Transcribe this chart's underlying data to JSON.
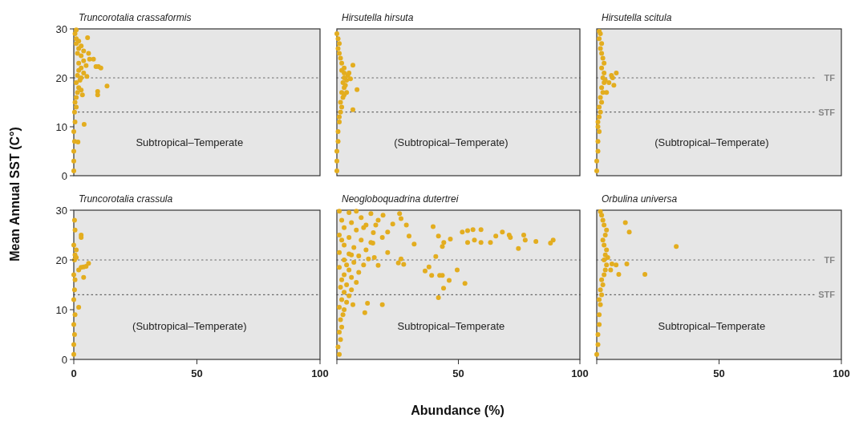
{
  "chart_data": [
    {
      "type": "scatter",
      "title": "Truncorotalia crassaformis",
      "ylabel": "Mean Annual SST (C°)",
      "annotations": [
        "Subtropical–Temperate"
      ],
      "color": "#e3ad1f",
      "marker": "circle",
      "xlim": [
        0,
        100
      ],
      "ylim": [
        0,
        30
      ],
      "yticks": [
        0,
        10,
        20,
        30
      ],
      "tick_labels": "y",
      "x": [
        0,
        0,
        0,
        0.3,
        0,
        0.5,
        0.3,
        1,
        0.5,
        1,
        1.5,
        2,
        1,
        2.5,
        3,
        1.5,
        4,
        2,
        3,
        5,
        2,
        4,
        6,
        3,
        1.5,
        4,
        2,
        3,
        1,
        2,
        1,
        0.5,
        1,
        5.6,
        6.4,
        8,
        9,
        10,
        11,
        13.5,
        9.7,
        9.7,
        4.2,
        1.7,
        5.3,
        3,
        3.5
      ],
      "values": [
        1,
        3,
        5,
        7,
        9,
        11,
        13,
        14,
        15,
        16,
        17,
        18,
        19,
        19.5,
        20,
        20.5,
        21,
        21.5,
        22,
        22.5,
        23,
        23.5,
        25,
        24.5,
        25,
        25.5,
        26,
        26.5,
        27,
        27.5,
        28,
        29,
        29.8,
        28.2,
        23.8,
        23.8,
        22.3,
        22.3,
        22,
        18.3,
        17.2,
        16.5,
        10.5,
        6.9,
        20.3,
        17.5,
        16.5
      ],
      "ref_lines": [
        {
          "axis": "y",
          "value": 20,
          "color": "#666666",
          "line_style": "dotted"
        },
        {
          "axis": "y",
          "value": 13,
          "color": "#666666",
          "line_style": "dotted"
        }
      ]
    },
    {
      "type": "scatter",
      "title": "Hirsutella hirsuta",
      "annotations": [
        "(Subtropical–Temperate)"
      ],
      "color": "#e3ad1f",
      "marker": "circle",
      "xlim": [
        0,
        100
      ],
      "ylim": [
        0,
        30
      ],
      "tick_labels": false,
      "x": [
        0,
        0,
        0,
        0.5,
        0.5,
        1,
        1,
        1.5,
        2,
        1.5,
        2.5,
        2,
        3,
        3.5,
        2.5,
        4,
        3,
        4.5,
        3,
        2,
        3,
        2,
        1.5,
        1,
        0.5,
        1,
        0.5,
        0,
        6.6,
        8.3,
        6.6,
        5.6,
        5,
        4,
        3
      ],
      "values": [
        1,
        3,
        5,
        7,
        9,
        11,
        12,
        13,
        14,
        15,
        16,
        17,
        18,
        18.5,
        19,
        19.5,
        20,
        20.5,
        21,
        21.5,
        22,
        23,
        24,
        25,
        26,
        27,
        28,
        29,
        22.6,
        17.6,
        13.5,
        19.8,
        21,
        17,
        16.5
      ],
      "ref_lines": [
        {
          "axis": "y",
          "value": 20,
          "color": "#666666",
          "line_style": "dotted"
        },
        {
          "axis": "y",
          "value": 13,
          "color": "#666666",
          "line_style": "dotted"
        }
      ]
    },
    {
      "type": "scatter",
      "title": "Hirsutella scitula",
      "annotations": [
        "(Subtropical–Temperate)"
      ],
      "color": "#e3ad1f",
      "marker": "circle",
      "xlim": [
        0,
        100
      ],
      "ylim": [
        0,
        30
      ],
      "tick_labels": false,
      "x": [
        0,
        0,
        0.5,
        0.5,
        1,
        0.5,
        1,
        1.5,
        1,
        2,
        1.5,
        2.5,
        2,
        3,
        3.5,
        2.5,
        3,
        2,
        3,
        2.5,
        2,
        1.5,
        2,
        1,
        1.5,
        1,
        0.5,
        6,
        8,
        5,
        7,
        4,
        6.5
      ],
      "values": [
        1,
        3,
        5,
        7,
        9,
        11,
        12,
        13,
        14,
        15,
        16,
        17,
        18,
        19,
        19.5,
        20,
        21,
        22,
        23,
        24,
        25,
        26,
        27,
        28,
        29,
        29.5,
        10,
        20.5,
        21,
        19,
        18.5,
        17,
        20
      ],
      "ref_lines": [
        {
          "axis": "y",
          "value": 20,
          "label": "TF",
          "color": "#666666",
          "line_style": "dotted"
        },
        {
          "axis": "y",
          "value": 13,
          "label": "STF",
          "color": "#666666",
          "line_style": "dotted"
        }
      ]
    },
    {
      "type": "scatter",
      "title": "Truncorotalia crassula",
      "annotations": [
        "(Subtropical–Temperate)"
      ],
      "color": "#e3ad1f",
      "marker": "circle",
      "xlim": [
        0,
        100
      ],
      "ylim": [
        0,
        30
      ],
      "xticks": [
        0,
        50,
        100
      ],
      "yticks": [
        0,
        10,
        20,
        30
      ],
      "x": [
        0,
        0,
        0.3,
        0,
        0.5,
        0,
        0.3,
        0.5,
        0,
        0.3,
        0.5,
        0,
        0.5,
        0.3,
        3,
        3,
        1,
        2,
        3,
        4,
        5,
        6,
        4,
        2,
        1
      ],
      "values": [
        1,
        3,
        5,
        7,
        9,
        12,
        14,
        16,
        17,
        20,
        21,
        23,
        26,
        28,
        25,
        24.5,
        22,
        18,
        18.5,
        18.6,
        18.7,
        19.3,
        16.5,
        10.5,
        20.5
      ],
      "ref_lines": [
        {
          "axis": "y",
          "value": 20,
          "color": "#666666",
          "line_style": "dotted"
        },
        {
          "axis": "y",
          "value": 13,
          "color": "#666666",
          "line_style": "dotted"
        }
      ]
    },
    {
      "type": "scatter",
      "title": "Neogloboquadrina dutertrei",
      "xlabel": "Abundance (%)",
      "annotations": [
        "Subtropical–Temperate"
      ],
      "color": "#e3ad1f",
      "marker": "circle",
      "xlim": [
        0,
        100
      ],
      "ylim": [
        0,
        30
      ],
      "xticks": [
        {
          "value": 0,
          "label": null
        },
        50,
        100
      ],
      "tick_labels": "x",
      "x": [
        25.8,
        26.4,
        28.6,
        23,
        20.9,
        18.7,
        29.7,
        31.8,
        39.6,
        41.8,
        44,
        43.4,
        46.7,
        51.6,
        53.8,
        56,
        59.3,
        53.8,
        56.6,
        59.3,
        63.2,
        65.4,
        68.1,
        70.9,
        71.4,
        76.9,
        77.5,
        74.7,
        81.9,
        87.9,
        89,
        25.3,
        27.5,
        26.4,
        37.9,
        36.3,
        40.7,
        39,
        42.3,
        43.4,
        46.2,
        52.7,
        43.9,
        49.5,
        41.8,
        18.7,
        12.6,
        11.5,
        6.6,
        15.4,
        20.9,
        17,
        14.8,
        1,
        0.5,
        1.5,
        1,
        2,
        1.5,
        2.5,
        3,
        1,
        4,
        2,
        5,
        3,
        6,
        1.5,
        4,
        8,
        2,
        6,
        3,
        9,
        5,
        1,
        11,
        7,
        3,
        13,
        9,
        5,
        1,
        12,
        7,
        3,
        14,
        10,
        5,
        1,
        15,
        8,
        3,
        12,
        6,
        17,
        2,
        10,
        19,
        14,
        5,
        8,
        1,
        11,
        4,
        6,
        2,
        16
      ],
      "values": [
        29.3,
        28.3,
        27,
        27.2,
        25.6,
        24.5,
        24.8,
        23.2,
        26.7,
        24.8,
        23.5,
        22.7,
        24.2,
        25.6,
        25.9,
        26.1,
        26.1,
        23.5,
        24,
        23.5,
        23.5,
        24.8,
        25.6,
        25,
        24.5,
        25,
        24,
        22.3,
        23.7,
        23.4,
        24,
        19.4,
        19.1,
        20.2,
        18.6,
        17.8,
        20.7,
        16.9,
        16.9,
        16.9,
        15.9,
        15.3,
        14.3,
        18,
        12.4,
        11,
        11.3,
        9.4,
        11,
        20.5,
        21.5,
        18.9,
        23.4,
        1,
        2.5,
        4,
        5.5,
        6.5,
        8,
        9,
        10,
        10.5,
        11.5,
        12,
        12.8,
        13.5,
        14,
        14.5,
        15,
        15.5,
        16,
        16.5,
        17,
        17.5,
        18,
        18.5,
        19,
        19.5,
        20,
        20.2,
        20.8,
        21.2,
        21.5,
        22,
        22.5,
        23,
        23.5,
        24,
        24.5,
        25,
        25.5,
        26,
        26.5,
        27,
        27.5,
        28,
        28,
        28.5,
        29,
        29.3,
        29.5,
        29.8,
        29.8,
        26.5,
        19,
        21,
        24,
        27
      ],
      "ref_lines": [
        {
          "axis": "y",
          "value": 20,
          "color": "#666666",
          "line_style": "dotted"
        },
        {
          "axis": "y",
          "value": 13,
          "color": "#666666",
          "line_style": "dotted"
        }
      ]
    },
    {
      "type": "scatter",
      "title": "Orbulina universa",
      "annotations": [
        "Subtropical–Temperate"
      ],
      "color": "#e3ad1f",
      "marker": "circle",
      "xlim": [
        0,
        100
      ],
      "ylim": [
        0,
        30
      ],
      "xticks": [
        {
          "value": 0,
          "label": null
        },
        50,
        100
      ],
      "tick_labels": "x",
      "x": [
        0,
        0.5,
        0.5,
        1,
        1,
        1.5,
        1,
        2,
        1.5,
        2.5,
        2,
        3,
        3.5,
        4,
        3,
        4.5,
        3.5,
        4,
        3,
        2.5,
        3.5,
        4,
        3,
        2.5,
        2,
        1.5,
        11.7,
        13.3,
        32.5,
        12.3,
        6.2,
        7.9,
        5.7,
        9,
        19.7
      ],
      "values": [
        1,
        3,
        5,
        7,
        9,
        11,
        12,
        13,
        14,
        15,
        16,
        17,
        18,
        19,
        20,
        20.5,
        21,
        22,
        23,
        24,
        25,
        26,
        27,
        28,
        29,
        29.7,
        27.5,
        25.6,
        22.7,
        19.2,
        19.2,
        19,
        18,
        17.1,
        17.1
      ],
      "ref_lines": [
        {
          "axis": "y",
          "value": 20,
          "label": "TF",
          "color": "#666666",
          "line_style": "dotted"
        },
        {
          "axis": "y",
          "value": 13,
          "label": "STF",
          "color": "#666666",
          "line_style": "dotted"
        }
      ]
    }
  ]
}
